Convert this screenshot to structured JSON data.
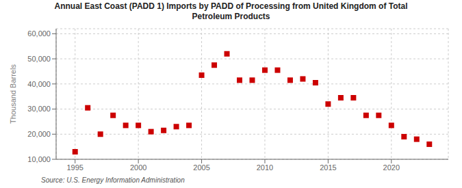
{
  "chart_data": {
    "type": "scatter",
    "title": "Annual East Coast (PADD 1) Imports by PADD of Processing from United Kingdom of Total\nPetroleum Products",
    "ylabel": "Thousand Barrels",
    "annotations": [
      "Source: U.S. Energy Information Administration"
    ],
    "x": [
      1995,
      1996,
      1997,
      1998,
      1999,
      2000,
      2001,
      2002,
      2003,
      2004,
      2005,
      2006,
      2007,
      2008,
      2009,
      2010,
      2011,
      2012,
      2013,
      2014,
      2015,
      2016,
      2017,
      2018,
      2019,
      2020,
      2021,
      2022,
      2023
    ],
    "values": [
      13000,
      30500,
      20000,
      27500,
      23500,
      23500,
      21000,
      21500,
      23000,
      23500,
      43500,
      47500,
      52000,
      41500,
      41500,
      45500,
      45500,
      41500,
      42000,
      40500,
      32000,
      34500,
      34500,
      27500,
      27500,
      23500,
      19000,
      18000,
      16000
    ],
    "color": "#cc0000",
    "marker": "square",
    "xlim": [
      1993.5,
      2024.5
    ],
    "ylim": [
      10000,
      62000
    ],
    "xticks": [
      1995,
      2000,
      2005,
      2010,
      2015,
      2020
    ],
    "yticks": [
      {
        "value": 10000,
        "label": "10,000"
      },
      {
        "value": 20000,
        "label": "20,000"
      },
      {
        "value": 30000,
        "label": "30,000"
      },
      {
        "value": 40000,
        "label": "40,000"
      },
      {
        "value": 50000,
        "label": "50,000"
      },
      {
        "value": 60000,
        "label": "60,000"
      }
    ],
    "grid": true
  }
}
